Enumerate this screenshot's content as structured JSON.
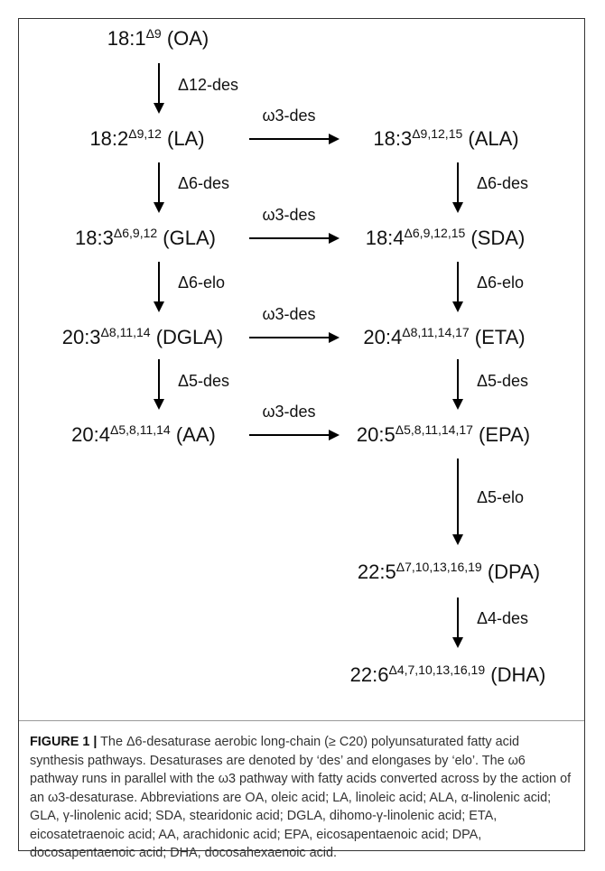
{
  "nodes": {
    "oa": {
      "base": "18:1",
      "sup": "Δ9",
      "abbr": " (OA)"
    },
    "la": {
      "base": "18:2",
      "sup": "Δ9,12",
      "abbr": " (LA)"
    },
    "ala": {
      "base": "18:3",
      "sup": "Δ9,12,15",
      "abbr": " (ALA)"
    },
    "gla": {
      "base": "18:3",
      "sup": "Δ6,9,12",
      "abbr": " (GLA)"
    },
    "sda": {
      "base": "18:4",
      "sup": "Δ6,9,12,15",
      "abbr": " (SDA)"
    },
    "dgla": {
      "base": "20:3",
      "sup": "Δ8,11,14",
      "abbr": " (DGLA)"
    },
    "eta": {
      "base": "20:4",
      "sup": "Δ8,11,14,17",
      "abbr": " (ETA)"
    },
    "aa": {
      "base": "20:4",
      "sup": "Δ5,8,11,14",
      "abbr": " (AA)"
    },
    "epa": {
      "base": "20:5",
      "sup": "Δ5,8,11,14,17",
      "abbr": " (EPA)"
    },
    "dpa": {
      "base": "22:5",
      "sup": "Δ7,10,13,16,19",
      "abbr": " (DPA)"
    },
    "dha": {
      "base": "22:6",
      "sup": "Δ4,7,10,13,16,19",
      "abbr": " (DHA)"
    }
  },
  "edges": {
    "oa_la": "Δ12-des",
    "la_gla": "Δ6-des",
    "gla_dgla": "Δ6-elo",
    "dgla_aa": "Δ5-des",
    "ala_sda": "Δ6-des",
    "sda_eta": "Δ6-elo",
    "eta_epa": "Δ5-des",
    "epa_dpa": "Δ5-elo",
    "dpa_dha": "Δ4-des",
    "la_ala": "ω3-des",
    "gla_sda": "ω3-des",
    "dgla_eta": "ω3-des",
    "aa_epa": "ω3-des"
  },
  "caption": {
    "lead": "FIGURE 1 |",
    "text": " The Δ6-desaturase aerobic long-chain (≥ C20) polyunsaturated fatty acid synthesis pathways. Desaturases are denoted by ‘des’ and elongases by ‘elo’. The ω6 pathway runs in parallel with the ω3 pathway with fatty acids converted across by the action of an ω3-desaturase. Abbreviations are OA, oleic acid; LA, linoleic acid; ALA, α-linolenic acid; GLA, γ-linolenic acid; SDA, stearidonic acid; DGLA, dihomo-γ-linolenic acid; ETA, eicosatetraenoic acid; AA, arachidonic acid; EPA, eicosapentaenoic acid; DPA, docosapentaenoic acid; DHA, docosahexaenoic acid."
  }
}
